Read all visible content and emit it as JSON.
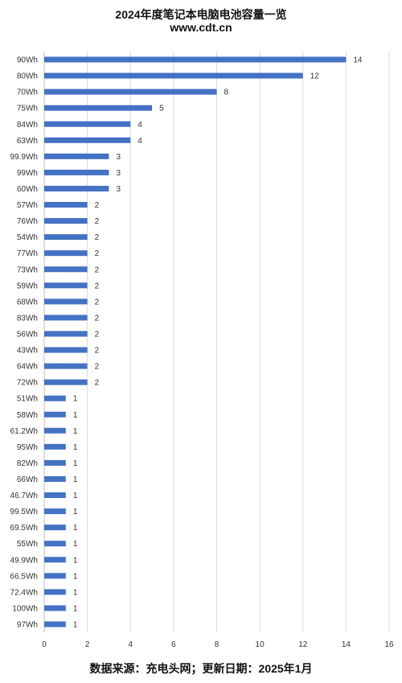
{
  "chart_data": {
    "type": "bar",
    "orientation": "horizontal",
    "title": "2024年度笔记本电脑电池容量一览",
    "subtitle": "www.cdt.cn",
    "footer": "数据来源：充电头网；更新日期：2025年1月",
    "categories": [
      "90Wh",
      "80Wh",
      "70Wh",
      "75Wh",
      "84Wh",
      "63Wh",
      "99.9Wh",
      "99Wh",
      "60Wh",
      "57Wh",
      "76Wh",
      "54Wh",
      "77Wh",
      "73Wh",
      "59Wh",
      "68Wh",
      "83Wh",
      "56Wh",
      "43Wh",
      "64Wh",
      "72Wh",
      "51Wh",
      "58Wh",
      "61.2Wh",
      "95Wh",
      "82Wh",
      "66Wh",
      "46.7Wh",
      "99.5Wh",
      "69.5Wh",
      "55Wh",
      "49.9Wh",
      "66.5Wh",
      "72.4Wh",
      "100Wh",
      "97Wh"
    ],
    "values": [
      14,
      12,
      8,
      5,
      4,
      4,
      3,
      3,
      3,
      2,
      2,
      2,
      2,
      2,
      2,
      2,
      2,
      2,
      2,
      2,
      2,
      1,
      1,
      1,
      1,
      1,
      1,
      1,
      1,
      1,
      1,
      1,
      1,
      1,
      1,
      1
    ],
    "xlim": [
      0,
      16
    ],
    "xticks": [
      "0",
      "2",
      "4",
      "6",
      "8",
      "10",
      "12",
      "14",
      "16"
    ],
    "grid": true,
    "bar_color": "#4472C4"
  }
}
